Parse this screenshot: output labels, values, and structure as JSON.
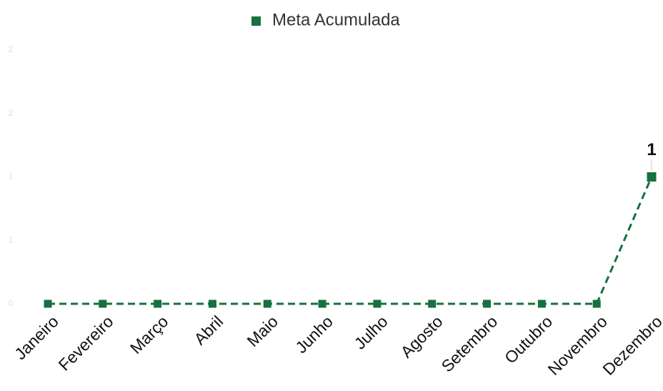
{
  "chart_data": {
    "type": "line",
    "categories": [
      "Janeiro",
      "Fevereiro",
      "Março",
      "Abril",
      "Maio",
      "Junho",
      "Julho",
      "Agosto",
      "Setembro",
      "Outubro",
      "Novembro",
      "Dezembro"
    ],
    "series": [
      {
        "name": "Meta Acumulada",
        "color": "#17703f",
        "values": [
          0,
          0,
          0,
          0,
          0,
          0,
          0,
          0,
          0,
          0,
          0,
          1
        ],
        "value_labels": [
          null,
          null,
          null,
          null,
          null,
          null,
          null,
          null,
          null,
          null,
          null,
          "1"
        ]
      }
    ],
    "ylim": [
      0,
      2
    ],
    "yticks": [
      0,
      {
        "value": 0.5,
        "label": "1"
      },
      1,
      {
        "value": 1.5,
        "label": "2"
      },
      2
    ],
    "legend": "top"
  }
}
